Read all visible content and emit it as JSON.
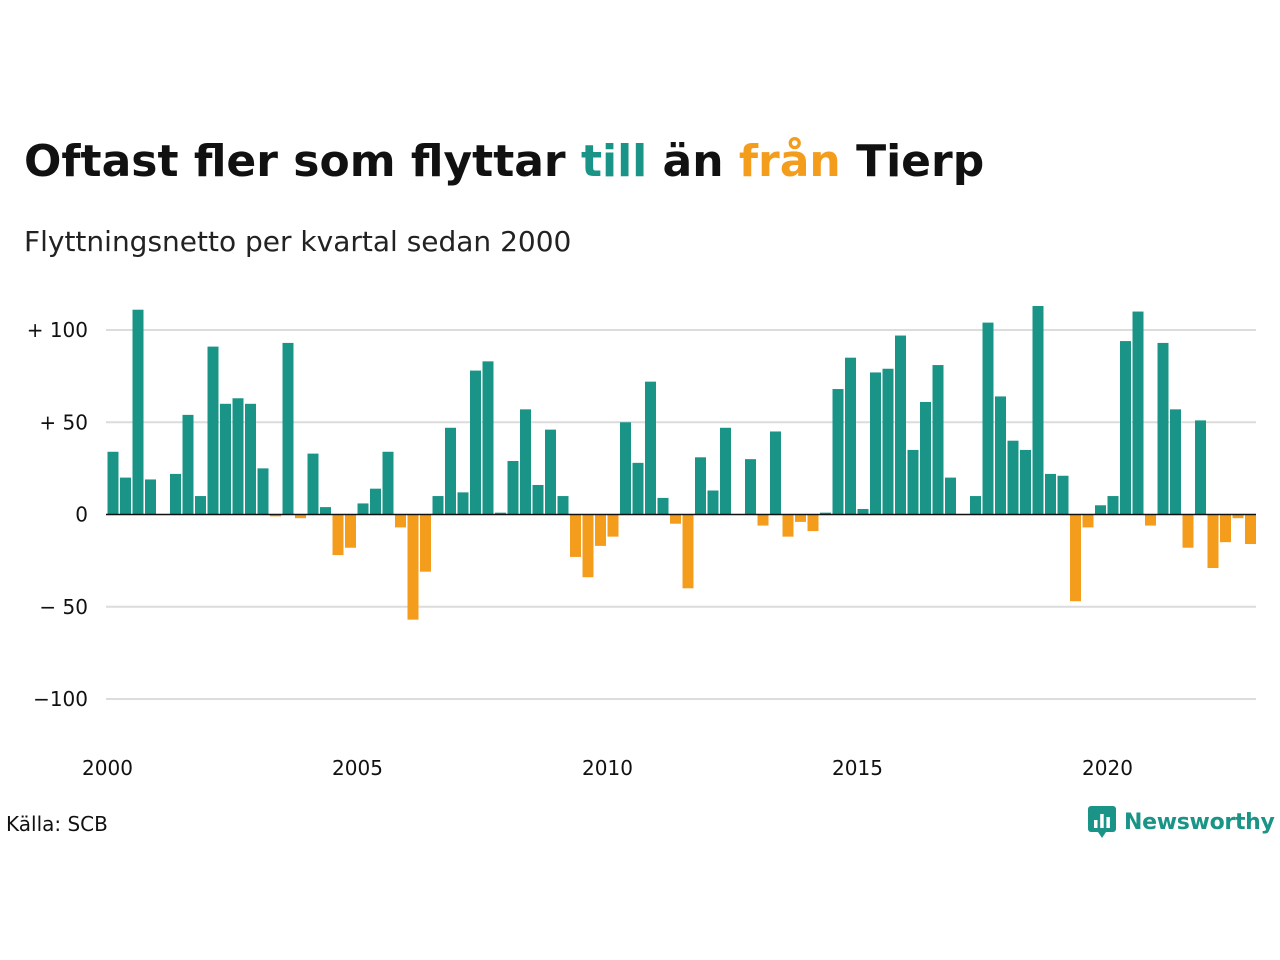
{
  "title": {
    "prefix": "Oftast fler som flyttar ",
    "highlight_positive": "till",
    "middle": " än ",
    "highlight_negative": "från",
    "suffix": " Tierp"
  },
  "subtitle": "Flyttningsnetto per kvartal sedan 2000",
  "source": "Källa: SCB",
  "brand": "Newsworthy",
  "colors": {
    "positive": "#1a9487",
    "negative": "#f49c1c",
    "grid": "#dcdcdc",
    "zero": "#111111"
  },
  "chart_data": {
    "type": "bar",
    "x_start_year": 2000,
    "periods_per_year": 4,
    "x_ticks": [
      "2000",
      "2005",
      "2010",
      "2015",
      "2020"
    ],
    "y_ticks": [
      {
        "value": 100,
        "label": "+ 100"
      },
      {
        "value": 50,
        "label": "+  50"
      },
      {
        "value": 0,
        "label": "0"
      },
      {
        "value": -50,
        "label": "− 50"
      },
      {
        "value": -100,
        "label": "−100"
      }
    ],
    "ylim": [
      -120,
      120
    ],
    "grid": true,
    "values": [
      34,
      20,
      111,
      19,
      0,
      22,
      54,
      10,
      91,
      60,
      63,
      60,
      25,
      -1,
      93,
      -2,
      33,
      4,
      -22,
      -18,
      6,
      14,
      34,
      -7,
      -57,
      -31,
      10,
      47,
      12,
      78,
      83,
      1,
      29,
      57,
      16,
      46,
      10,
      -23,
      -34,
      -17,
      -12,
      50,
      28,
      72,
      9,
      -5,
      -40,
      31,
      13,
      47,
      0,
      30,
      -6,
      45,
      -12,
      -4,
      -9,
      1,
      68,
      85,
      3,
      77,
      79,
      97,
      35,
      61,
      81,
      20,
      0,
      10,
      104,
      64,
      40,
      35,
      113,
      22,
      21,
      -47,
      -7,
      5,
      10,
      94,
      110,
      -6,
      93,
      57,
      -18,
      51,
      -29,
      -15,
      -2,
      -16
    ]
  }
}
